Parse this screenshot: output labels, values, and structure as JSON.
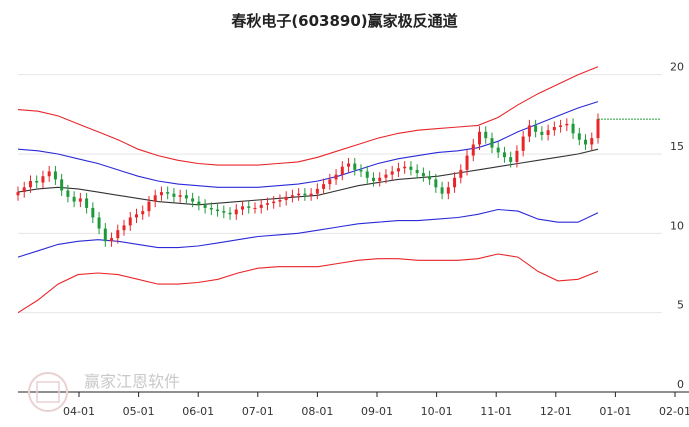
{
  "chart_data": {
    "type": "candlestick",
    "title": "春秋电子(603890)赢家极反通道",
    "x_tick_labels": [
      "04-01",
      "05-01",
      "06-01",
      "07-01",
      "08-01",
      "09-01",
      "10-01",
      "11-01",
      "12-01",
      "01-01",
      "02-01"
    ],
    "y_tick_labels": [
      "0",
      "5",
      "10",
      "15",
      "20"
    ],
    "ylim": [
      0,
      22.5
    ],
    "grid": "horizontal",
    "last_price": 17.2,
    "watermark": "赢家江恩软件",
    "colors": {
      "up": "#e8262a",
      "down": "#1f9a3a",
      "outer_band": "#e8262a",
      "inner_band": "#2a2ad6",
      "mid_line": "#333333",
      "last_price_line": "#1f9a3a",
      "grid": "#e6e6e6"
    },
    "series": [
      {
        "name": "outer-upper",
        "x": [
          0,
          20,
          40,
          60,
          80,
          100,
          120,
          140,
          160,
          180,
          200,
          220,
          240,
          260,
          280,
          300,
          320,
          340,
          360,
          380,
          400,
          420,
          440,
          460,
          480,
          500,
          520,
          540,
          560,
          580
        ],
        "values": [
          17.8,
          17.7,
          17.4,
          16.9,
          16.4,
          15.9,
          15.3,
          14.9,
          14.6,
          14.4,
          14.3,
          14.3,
          14.3,
          14.4,
          14.5,
          14.8,
          15.2,
          15.6,
          16.0,
          16.3,
          16.5,
          16.6,
          16.7,
          16.8,
          17.3,
          18.1,
          18.8,
          19.4,
          20.0,
          20.5
        ]
      },
      {
        "name": "inner-upper",
        "x": [
          0,
          20,
          40,
          60,
          80,
          100,
          120,
          140,
          160,
          180,
          200,
          220,
          240,
          260,
          280,
          300,
          320,
          340,
          360,
          380,
          400,
          420,
          440,
          460,
          480,
          500,
          520,
          540,
          560,
          580
        ],
        "values": [
          15.3,
          15.2,
          15.0,
          14.7,
          14.4,
          14.0,
          13.6,
          13.3,
          13.1,
          13.0,
          12.9,
          12.9,
          12.9,
          13.0,
          13.1,
          13.3,
          13.6,
          14.0,
          14.4,
          14.7,
          14.9,
          15.1,
          15.2,
          15.4,
          15.8,
          16.4,
          16.9,
          17.4,
          17.9,
          18.3
        ]
      },
      {
        "name": "mid-line",
        "x": [
          0,
          20,
          40,
          60,
          80,
          100,
          120,
          140,
          160,
          180,
          200,
          220,
          240,
          260,
          280,
          300,
          320,
          340,
          360,
          380,
          400,
          420,
          440,
          460,
          480,
          500,
          520,
          540,
          560,
          580
        ],
        "values": [
          12.6,
          12.8,
          12.9,
          12.8,
          12.6,
          12.4,
          12.2,
          12.0,
          11.9,
          11.8,
          11.9,
          12.0,
          12.1,
          12.2,
          12.3,
          12.4,
          12.7,
          13.0,
          13.2,
          13.4,
          13.5,
          13.6,
          13.8,
          14.0,
          14.2,
          14.4,
          14.6,
          14.8,
          15.0,
          15.3
        ]
      },
      {
        "name": "inner-lower",
        "x": [
          0,
          20,
          40,
          60,
          80,
          100,
          120,
          140,
          160,
          180,
          200,
          220,
          240,
          260,
          280,
          300,
          320,
          340,
          360,
          380,
          400,
          420,
          440,
          460,
          480,
          500,
          520,
          540,
          560,
          580
        ],
        "values": [
          8.5,
          8.9,
          9.3,
          9.5,
          9.6,
          9.5,
          9.3,
          9.1,
          9.1,
          9.2,
          9.4,
          9.6,
          9.8,
          9.9,
          10.0,
          10.2,
          10.4,
          10.6,
          10.7,
          10.8,
          10.8,
          10.9,
          11.0,
          11.2,
          11.5,
          11.4,
          10.9,
          10.7,
          10.7,
          11.3
        ]
      },
      {
        "name": "outer-lower",
        "x": [
          0,
          20,
          40,
          60,
          80,
          100,
          120,
          140,
          160,
          180,
          200,
          220,
          240,
          260,
          280,
          300,
          320,
          340,
          360,
          380,
          400,
          420,
          440,
          460,
          480,
          500,
          520,
          540,
          560,
          580
        ],
        "values": [
          5.0,
          5.8,
          6.8,
          7.4,
          7.5,
          7.4,
          7.1,
          6.8,
          6.8,
          6.9,
          7.1,
          7.5,
          7.8,
          7.9,
          7.9,
          7.9,
          8.1,
          8.3,
          8.4,
          8.4,
          8.3,
          8.3,
          8.3,
          8.4,
          8.7,
          8.5,
          7.6,
          7.0,
          7.1,
          7.6
        ]
      }
    ],
    "closes": [
      12.6,
      12.9,
      13.3,
      13.2,
      13.6,
      13.9,
      13.4,
      12.7,
      12.3,
      12.0,
      12.2,
      11.6,
      11.0,
      10.3,
      9.5,
      9.7,
      10.2,
      10.5,
      11.0,
      11.2,
      11.4,
      12.0,
      12.4,
      12.6,
      12.5,
      12.3,
      12.4,
      12.2,
      12.0,
      11.8,
      11.6,
      11.5,
      11.4,
      11.3,
      11.2,
      11.5,
      11.7,
      11.6,
      11.6,
      11.8,
      11.9,
      12.0,
      12.1,
      12.3,
      12.4,
      12.5,
      12.4,
      12.5,
      12.8,
      13.1,
      13.4,
      13.7,
      14.2,
      14.4,
      14.0,
      13.9,
      13.5,
      13.3,
      13.5,
      13.7,
      13.9,
      14.1,
      14.2,
      14.0,
      13.8,
      13.6,
      13.4,
      12.9,
      12.5,
      12.9,
      13.5,
      14.0,
      14.9,
      15.6,
      16.4,
      16.0,
      15.4,
      15.1,
      14.8,
      14.5,
      15.2,
      16.1,
      16.8,
      16.4,
      16.2,
      16.5,
      16.7,
      16.8,
      16.9,
      16.3,
      15.9,
      15.6,
      16.0,
      17.2
    ],
    "opens": [
      12.4,
      12.6,
      12.9,
      13.3,
      13.2,
      13.6,
      13.9,
      13.4,
      12.7,
      12.3,
      12.0,
      12.2,
      11.6,
      11.0,
      10.3,
      9.5,
      9.7,
      10.2,
      10.5,
      11.0,
      11.2,
      11.4,
      12.0,
      12.4,
      12.6,
      12.5,
      12.3,
      12.4,
      12.2,
      12.0,
      11.8,
      11.6,
      11.5,
      11.4,
      11.3,
      11.2,
      11.5,
      11.7,
      11.6,
      11.6,
      11.8,
      11.9,
      12.0,
      12.1,
      12.3,
      12.4,
      12.5,
      12.4,
      12.5,
      12.8,
      13.1,
      13.4,
      13.7,
      14.2,
      14.4,
      14.0,
      13.9,
      13.5,
      13.3,
      13.5,
      13.7,
      13.9,
      14.1,
      14.2,
      14.0,
      13.8,
      13.6,
      13.4,
      12.9,
      12.5,
      12.9,
      13.5,
      14.0,
      14.9,
      15.6,
      16.4,
      16.0,
      15.4,
      15.1,
      14.8,
      14.5,
      15.2,
      16.1,
      16.8,
      16.4,
      16.2,
      16.5,
      16.7,
      16.8,
      16.9,
      16.3,
      15.9,
      15.6,
      16.0
    ]
  }
}
